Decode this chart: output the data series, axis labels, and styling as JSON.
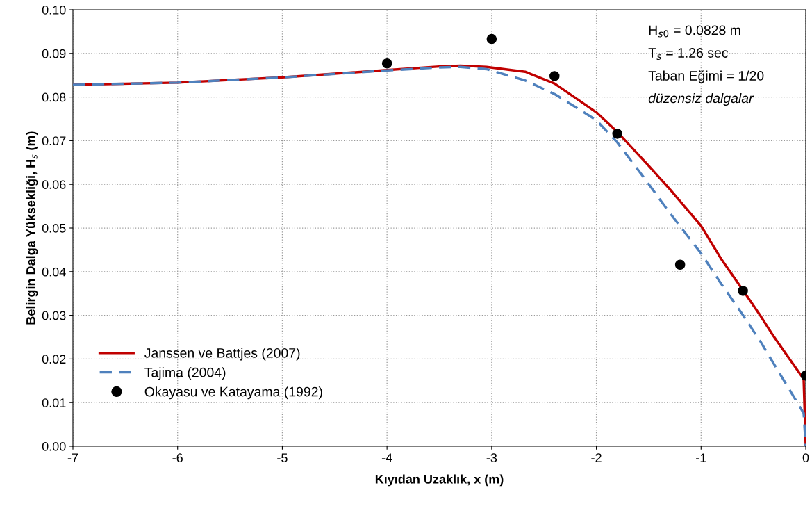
{
  "chart_data": {
    "type": "line",
    "xlabel": "Kıyıdan Uzaklık, x (m)",
    "ylabel": "Belirgin Dalga Yüksekliği, H$_{s}$ (m)",
    "xlim": [
      -7,
      0
    ],
    "xticks": [
      -7,
      -6,
      -5,
      -4,
      -3,
      -2,
      -1,
      0
    ],
    "ylim": [
      0,
      0.1
    ],
    "yticks": [
      {
        "value": 0,
        "label": "0.00"
      },
      {
        "value": 0.01,
        "label": "0.01"
      },
      {
        "value": 0.02,
        "label": "0.02"
      },
      {
        "value": 0.03,
        "label": "0.03"
      },
      {
        "value": 0.04,
        "label": "0.04"
      },
      {
        "value": 0.05,
        "label": "0.05"
      },
      {
        "value": 0.06,
        "label": "0.06"
      },
      {
        "value": 0.07,
        "label": "0.07"
      },
      {
        "value": 0.08,
        "label": "0.08"
      },
      {
        "value": 0.09,
        "label": "0.09"
      },
      {
        "value": 0.1,
        "label": "0.10"
      }
    ],
    "grid": true,
    "legend": "bottom left",
    "annotations": [
      "H$_{s0}$ = 0.0828 m",
      "T$_{s}$ = 1.26 sec",
      "Taban Eğimi = 1/20",
      "düzensiz dalgalar"
    ],
    "series": [
      {
        "name": "Janssen ve Battjes (2007)",
        "color": "#c00000",
        "line_style": "solid",
        "marker": "none",
        "x": [
          -7,
          -6,
          -5,
          -4,
          -3.5,
          -3.3,
          -3.05,
          -2.68,
          -2.4,
          -2.0,
          -1.8,
          -1.51,
          -1.31,
          -1.0,
          -0.81,
          -0.61,
          -0.43,
          -0.31,
          -0.02,
          0
        ],
        "values": [
          0.0828,
          0.0833,
          0.0845,
          0.0862,
          0.087,
          0.0872,
          0.0869,
          0.0858,
          0.0831,
          0.0765,
          0.072,
          0.0645,
          0.0592,
          0.0505,
          0.043,
          0.0361,
          0.0298,
          0.0253,
          0.0154,
          0
        ]
      },
      {
        "name": "Tajima (2004)",
        "color": "#4f81bd",
        "line_style": "dashed",
        "marker": "none",
        "x": [
          -7,
          -6,
          -5,
          -4,
          -3.5,
          -3.3,
          -3.05,
          -2.68,
          -2.4,
          -2.0,
          -1.8,
          -1.51,
          -1.31,
          -1.0,
          -0.81,
          -0.61,
          -0.43,
          -0.31,
          -0.02,
          0
        ],
        "values": [
          0.0828,
          0.0833,
          0.0845,
          0.0861,
          0.0868,
          0.0869,
          0.0864,
          0.0838,
          0.0807,
          0.0747,
          0.0696,
          0.0604,
          0.0538,
          0.0442,
          0.0373,
          0.0304,
          0.0239,
          0.0191,
          0.0076,
          0
        ]
      },
      {
        "name": "Okayasu ve Katayama (1992)",
        "type": "scatter",
        "color": "#000000",
        "marker": "circle",
        "x": [
          -4,
          -3,
          -2.4,
          -1.8,
          -1.2,
          -0.6,
          0
        ],
        "values": [
          0.0877,
          0.0933,
          0.0848,
          0.0716,
          0.0416,
          0.0356,
          0.0162
        ]
      }
    ]
  }
}
